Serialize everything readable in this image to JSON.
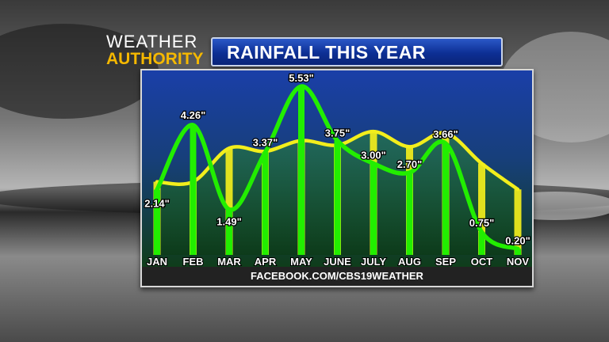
{
  "logo": {
    "line1": "WEATHER",
    "line2": "AUTHORITY"
  },
  "title": "RAINFALL THIS YEAR",
  "footer": "FACEBOOK.COM/CBS19WEATHER",
  "colors": {
    "actual": "#22ee00",
    "normal": "#f2ee1c",
    "title_bar": "#0d2f94",
    "logo_accent": "#f5b800",
    "plot_top": "#1a3fa8",
    "plot_bottom": "#0f3d1a"
  },
  "chart_data": {
    "type": "line",
    "title": "RAINFALL THIS YEAR",
    "categories": [
      "JAN",
      "FEB",
      "MAR",
      "APR",
      "MAY",
      "JUNE",
      "JULY",
      "AUG",
      "SEP",
      "OCT",
      "NOV"
    ],
    "series": [
      {
        "values": [
          2.14,
          4.26,
          1.49,
          3.37,
          5.53,
          3.75,
          3.0,
          2.7,
          3.66,
          0.75,
          0.2
        ],
        "labels": [
          "2.14\"",
          "4.26\"",
          "1.49\"",
          "3.37\"",
          "5.53\"",
          "3.75\"",
          "3.00\"",
          "2.70\"",
          "3.66\"",
          "0.75\"",
          "0.20\""
        ]
      },
      {
        "values": [
          2.4,
          2.4,
          3.5,
          3.4,
          3.75,
          3.6,
          4.05,
          3.55,
          4.0,
          3.0,
          2.15
        ]
      }
    ],
    "ylim": [
      0,
      6
    ],
    "grid": false
  }
}
